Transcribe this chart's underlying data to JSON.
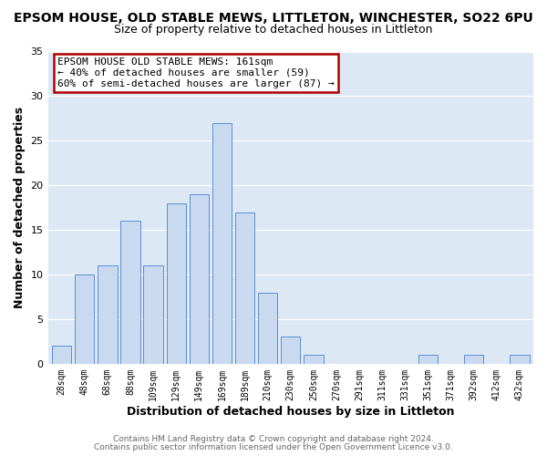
{
  "title": "EPSOM HOUSE, OLD STABLE MEWS, LITTLETON, WINCHESTER, SO22 6PU",
  "subtitle": "Size of property relative to detached houses in Littleton",
  "xlabel": "Distribution of detached houses by size in Littleton",
  "ylabel": "Number of detached properties",
  "bar_labels": [
    "28sqm",
    "48sqm",
    "68sqm",
    "88sqm",
    "109sqm",
    "129sqm",
    "149sqm",
    "169sqm",
    "189sqm",
    "210sqm",
    "230sqm",
    "250sqm",
    "270sqm",
    "291sqm",
    "311sqm",
    "331sqm",
    "351sqm",
    "371sqm",
    "392sqm",
    "412sqm",
    "432sqm"
  ],
  "bar_values": [
    2,
    10,
    11,
    16,
    11,
    18,
    19,
    27,
    17,
    8,
    3,
    1,
    0,
    0,
    0,
    0,
    1,
    0,
    1,
    0,
    1
  ],
  "bar_color": "#c9d9f0",
  "bar_edgecolor": "#5b8ed6",
  "ylim": [
    0,
    35
  ],
  "yticks": [
    0,
    5,
    10,
    15,
    20,
    25,
    30,
    35
  ],
  "annotation_title": "EPSOM HOUSE OLD STABLE MEWS: 161sqm",
  "annotation_line1": "← 40% of detached houses are smaller (59)",
  "annotation_line2": "60% of semi-detached houses are larger (87) →",
  "annotation_box_facecolor": "#ffffff",
  "annotation_box_edgecolor": "#b00000",
  "footer1": "Contains HM Land Registry data © Crown copyright and database right 2024.",
  "footer2": "Contains public sector information licensed under the Open Government Licence v3.0.",
  "fig_bg_color": "#ffffff",
  "plot_bg_color": "#dde8f5",
  "grid_color": "#ffffff",
  "title_color": "#000000",
  "subtitle_color": "#000000",
  "axis_label_color": "#000000",
  "tick_color": "#000000",
  "footer_color": "#666666"
}
